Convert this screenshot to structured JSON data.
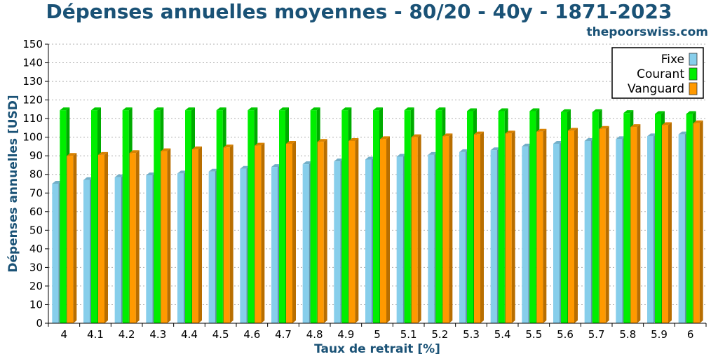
{
  "chart_data": {
    "type": "bar",
    "title": "Dépenses annuelles moyennes - 80/20 - 40y - 1871-2023",
    "watermark": "thepoorswiss.com",
    "xlabel": "Taux de retrait [%]",
    "ylabel": "Dépenses annuelles [USD]",
    "ylim": [
      0,
      150
    ],
    "yticks": [
      "0",
      "10",
      "20",
      "30",
      "40",
      "50",
      "60",
      "70",
      "80",
      "90",
      "100",
      "110",
      "120",
      "130",
      "140",
      "150"
    ],
    "categories": [
      "4",
      "4.1",
      "4.2",
      "4.3",
      "4.4",
      "4.5",
      "4.6",
      "4.7",
      "4.8",
      "4.9",
      "5",
      "5.1",
      "5.2",
      "5.3",
      "5.4",
      "5.5",
      "5.6",
      "5.7",
      "5.8",
      "5.9",
      "6"
    ],
    "grid": true,
    "legend_position": "top-right",
    "series": [
      {
        "name": "Fixe",
        "color": "#87ceeb",
        "values": [
          75,
          77,
          78.5,
          79.5,
          80.5,
          81.5,
          83,
          84,
          85.5,
          87,
          88,
          89.5,
          90.5,
          92,
          93,
          95,
          96.5,
          98,
          99,
          100.5,
          101.5
        ]
      },
      {
        "name": "Courant",
        "color": "#00ee00",
        "values": [
          114.5,
          114.5,
          114.5,
          114.5,
          114.5,
          114.5,
          114.5,
          114.5,
          114.5,
          114.5,
          114.5,
          114.5,
          114.5,
          114,
          114,
          114,
          113.5,
          113.5,
          113,
          112.5,
          112.5
        ]
      },
      {
        "name": "Vanguard",
        "color": "#ff9900",
        "values": [
          90,
          90.5,
          91.5,
          92.5,
          93.5,
          94.5,
          95.5,
          96.5,
          97.5,
          98,
          99,
          100,
          100.5,
          101.5,
          102,
          103,
          103.5,
          104.5,
          105.5,
          106.5,
          107.5
        ]
      }
    ]
  }
}
